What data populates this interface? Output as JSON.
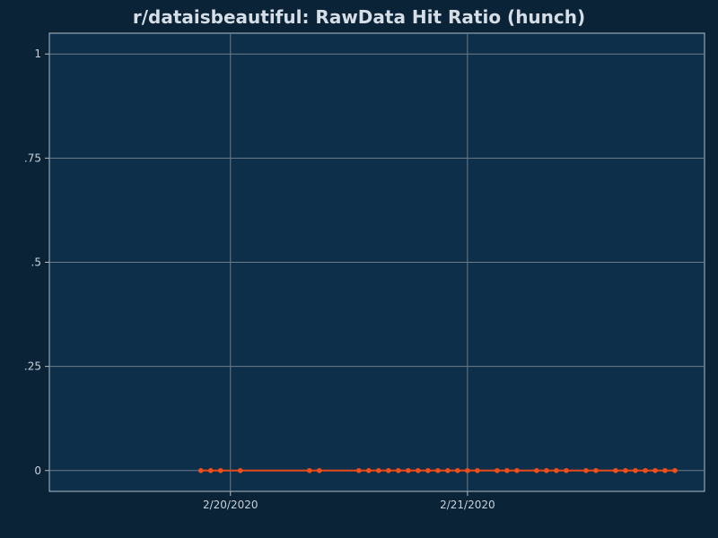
{
  "chart_data": {
    "type": "line",
    "title": "r/dataisbeautiful: RawData Hit Ratio (hunch)",
    "xlabel": "",
    "ylabel": "",
    "ylim": [
      -0.05,
      1.05
    ],
    "xlim": [
      "2020-02-19 05:40",
      "2020-02-22 00:00"
    ],
    "y_ticks": [
      {
        "value": 0,
        "label": "0"
      },
      {
        "value": 0.25,
        "label": ".25"
      },
      {
        "value": 0.5,
        "label": ".5"
      },
      {
        "value": 0.75,
        "label": ".75"
      },
      {
        "value": 1,
        "label": "1"
      }
    ],
    "x_ticks": [
      {
        "value": "2020-02-20 00:00",
        "label": "2/20/2020"
      },
      {
        "value": "2020-02-21 00:00",
        "label": "2/21/2020"
      }
    ],
    "grid": true,
    "colors": {
      "background": "#0a2336",
      "plot_background": "#0d2f4a",
      "grid": "#6b7d8c",
      "axis": "#b0bec8",
      "line": "#e64a19",
      "marker": "#f04e1a",
      "title": "#d5dde6",
      "tick_label": "#c8d2dc"
    },
    "series": [
      {
        "x": [
          "2020-02-19 21:00",
          "2020-02-19 22:00",
          "2020-02-19 23:00",
          "2020-02-20 01:00",
          "2020-02-20 08:00",
          "2020-02-20 09:00",
          "2020-02-20 13:00",
          "2020-02-20 14:00",
          "2020-02-20 15:00",
          "2020-02-20 16:00",
          "2020-02-20 17:00",
          "2020-02-20 18:00",
          "2020-02-20 19:00",
          "2020-02-20 20:00",
          "2020-02-20 21:00",
          "2020-02-20 22:00",
          "2020-02-20 23:00",
          "2020-02-21 00:00",
          "2020-02-21 01:00",
          "2020-02-21 03:00",
          "2020-02-21 04:00",
          "2020-02-21 05:00",
          "2020-02-21 07:00",
          "2020-02-21 08:00",
          "2020-02-21 09:00",
          "2020-02-21 10:00",
          "2020-02-21 12:00",
          "2020-02-21 13:00",
          "2020-02-21 15:00",
          "2020-02-21 16:00",
          "2020-02-21 17:00",
          "2020-02-21 18:00",
          "2020-02-21 19:00",
          "2020-02-21 20:00",
          "2020-02-21 21:00"
        ],
        "y": [
          0,
          0,
          0,
          0,
          0,
          0,
          0,
          0,
          0,
          0,
          0,
          0,
          0,
          0,
          0,
          0,
          0,
          0,
          0,
          0,
          0,
          0,
          0,
          0,
          0,
          0,
          0,
          0,
          0,
          0,
          0,
          0,
          0,
          0,
          0
        ]
      }
    ]
  }
}
